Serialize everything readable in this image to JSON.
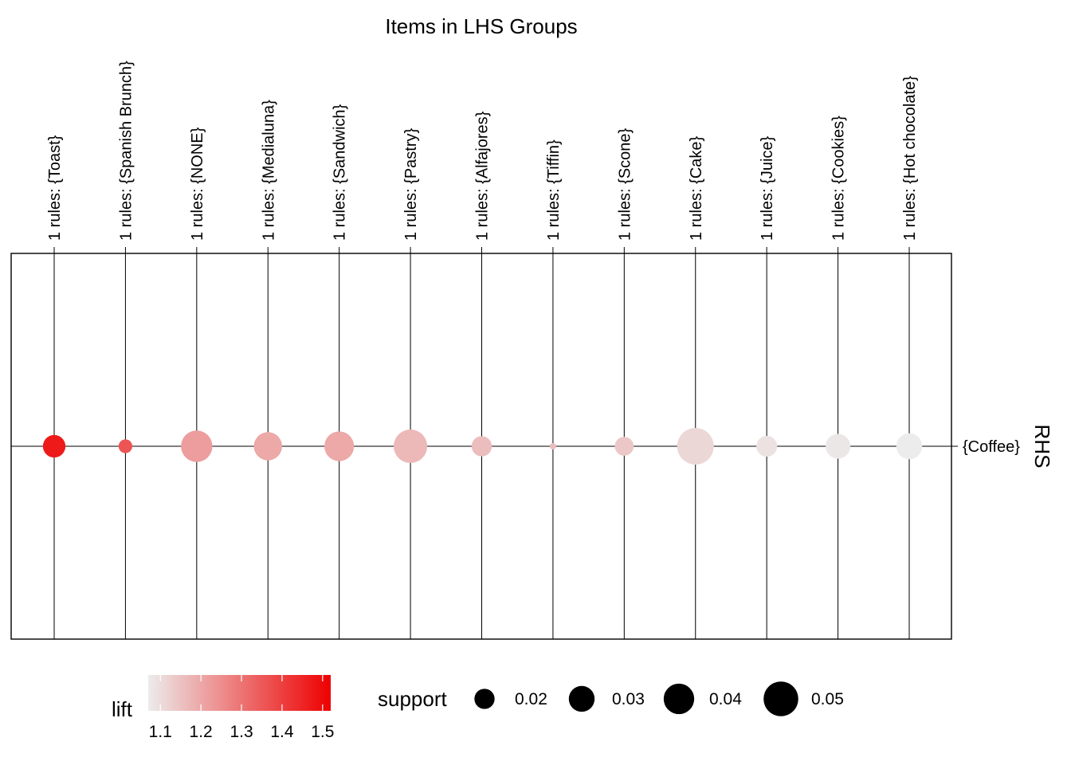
{
  "chart_data": {
    "type": "scatter",
    "title": "Items in LHS Groups",
    "x_axis_position": "top",
    "y_axis_label": "RHS",
    "categories": [
      "1 rules: {Toast}",
      "1 rules: {Spanish Brunch}",
      "1 rules: {NONE}",
      "1 rules: {Medialuna}",
      "1 rules: {Sandwich}",
      "1 rules: {Pastry}",
      "1 rules: {Alfajores}",
      "1 rules: {Tiffin}",
      "1 rules: {Scone}",
      "1 rules: {Cake}",
      "1 rules: {Juice}",
      "1 rules: {Cookies}",
      "1 rules: {Hot chocolate}"
    ],
    "rhs_items": [
      "{Coffee}"
    ],
    "points": [
      {
        "lhs": "{Toast}",
        "rhs": "{Coffee}",
        "support": 0.024,
        "lift": 1.47
      },
      {
        "lhs": "{Spanish Brunch}",
        "rhs": "{Coffee}",
        "support": 0.011,
        "lift": 1.36
      },
      {
        "lhs": "{NONE}",
        "rhs": "{Coffee}",
        "support": 0.042,
        "lift": 1.22
      },
      {
        "lhs": "{Medialuna}",
        "rhs": "{Coffee}",
        "support": 0.035,
        "lift": 1.2
      },
      {
        "lhs": "{Sandwich}",
        "rhs": "{Coffee}",
        "support": 0.038,
        "lift": 1.2
      },
      {
        "lhs": "{Pastry}",
        "rhs": "{Coffee}",
        "support": 0.047,
        "lift": 1.17
      },
      {
        "lhs": "{Alfajores}",
        "rhs": "{Coffee}",
        "support": 0.02,
        "lift": 1.16
      },
      {
        "lhs": "{Tiffin}",
        "rhs": "{Coffee}",
        "support": 0.004,
        "lift": 1.16
      },
      {
        "lhs": "{Scone}",
        "rhs": "{Coffee}",
        "support": 0.018,
        "lift": 1.14
      },
      {
        "lhs": "{Cake}",
        "rhs": "{Coffee}",
        "support": 0.055,
        "lift": 1.11
      },
      {
        "lhs": "{Juice}",
        "rhs": "{Coffee}",
        "support": 0.021,
        "lift": 1.09
      },
      {
        "lhs": "{Cookies}",
        "rhs": "{Coffee}",
        "support": 0.028,
        "lift": 1.08
      },
      {
        "lhs": "{Hot chocolate}",
        "rhs": "{Coffee}",
        "support": 0.03,
        "lift": 1.07
      }
    ],
    "lift_scale": {
      "label": "lift",
      "range": [
        1.07,
        1.52
      ],
      "ticks": [
        "1.1",
        "1.2",
        "1.3",
        "1.4",
        "1.5"
      ],
      "low_color": "#ececec",
      "high_color": "#ee0000"
    },
    "support_scale": {
      "label": "support",
      "range": [
        0.004,
        0.055
      ],
      "legend_values": [
        "0.02",
        "0.03",
        "0.04",
        "0.05"
      ],
      "color": "#000000"
    },
    "legend_position": "bottom",
    "grid": true
  }
}
